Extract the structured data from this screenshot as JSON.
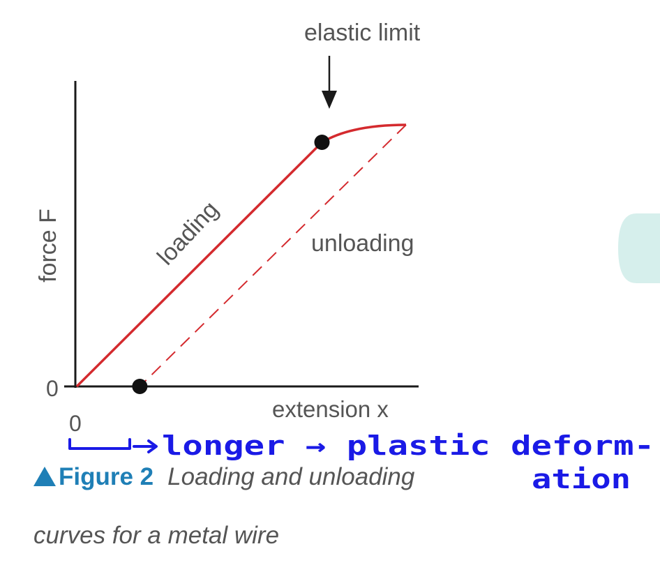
{
  "chart_data": {
    "type": "line",
    "ylabel": "force F",
    "xlabel": "extension x",
    "x_tick_labels": [
      "0"
    ],
    "y_tick_labels": [
      "0"
    ],
    "series": [
      {
        "name": "loading",
        "style": "solid",
        "x": [
          0,
          3.5,
          4.7
        ],
        "y": [
          0,
          3.5,
          3.75
        ]
      },
      {
        "name": "unloading",
        "style": "dashed",
        "x": [
          4.7,
          0.9
        ],
        "y": [
          3.75,
          0
        ]
      }
    ],
    "marked_points": [
      {
        "x": 3.5,
        "y": 3.5
      },
      {
        "x": 0.9,
        "y": 0
      }
    ],
    "annotations": {
      "elastic_limit": "elastic limit",
      "loading": "loading",
      "unloading": "unloading"
    },
    "handwritten_note": {
      "line1": "longer → plastic deform-",
      "line2": "ation"
    },
    "xlim": [
      0,
      4.7
    ],
    "ylim": [
      0,
      4
    ],
    "grid": false,
    "colors": {
      "curve": "#d42a2e",
      "axes": "#1a1a1a",
      "handwriting": "#1a1ae6",
      "figure_label": "#1f7fb6",
      "decor_blob": "#d6efec"
    }
  },
  "caption": {
    "label": "Figure 2",
    "text_line1": "Loading and unloading",
    "text_line2": "curves for a metal wire"
  }
}
